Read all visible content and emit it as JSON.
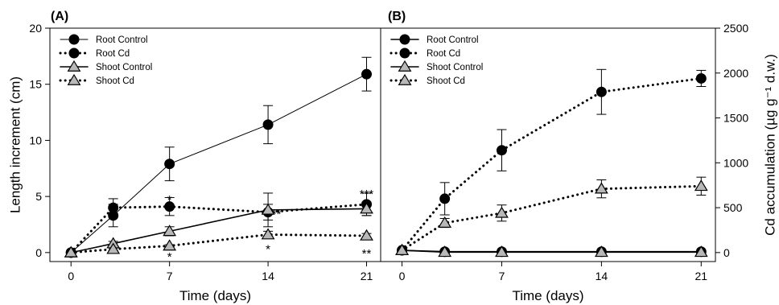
{
  "chart_data": [
    {
      "type": "line",
      "panel_label": "(A)",
      "xlabel": "Time (days)",
      "ylabel": "Length increment (cm)",
      "xlim": [
        -1.5,
        22
      ],
      "ylim": [
        -0.8,
        20
      ],
      "x_ticks": [
        0,
        7,
        14,
        21
      ],
      "y_ticks": [
        0,
        5,
        10,
        15,
        20
      ],
      "x_tick_labels": [
        "0",
        "7",
        "14",
        "21"
      ],
      "y_tick_labels": [
        "0",
        "5",
        "10",
        "15",
        "20"
      ],
      "legend_position": "top-left",
      "series": [
        {
          "name": "Root Control",
          "marker": "circle",
          "line": "solid-thin",
          "x": [
            0,
            3,
            7,
            14,
            21
          ],
          "y": [
            0.0,
            3.3,
            7.9,
            11.4,
            15.9
          ],
          "err": [
            0.1,
            1.0,
            1.5,
            1.7,
            1.5
          ]
        },
        {
          "name": "Root Cd",
          "marker": "circle",
          "line": "dotted",
          "x": [
            0,
            3,
            7,
            14,
            21
          ],
          "y": [
            0.0,
            4.0,
            4.1,
            3.6,
            4.3
          ],
          "err": [
            0.1,
            0.8,
            0.8,
            0.7,
            1.0
          ]
        },
        {
          "name": "Shoot Control",
          "marker": "triangle",
          "line": "solid",
          "x": [
            0,
            3,
            7,
            14,
            21
          ],
          "y": [
            0.0,
            0.8,
            1.9,
            3.8,
            3.9
          ],
          "err": [
            0.05,
            0.2,
            0.4,
            1.5,
            0.6
          ]
        },
        {
          "name": "Shoot Cd",
          "marker": "triangle",
          "line": "dotted",
          "x": [
            0,
            3,
            7,
            14,
            21
          ],
          "y": [
            0.0,
            0.3,
            0.6,
            1.6,
            1.5
          ],
          "err": [
            0.05,
            0.1,
            0.1,
            0.3,
            0.2
          ]
        }
      ],
      "annotations": [
        {
          "text": "*",
          "x": 7,
          "y": 4.8
        },
        {
          "text": "*",
          "x": 7,
          "y": -0.3
        },
        {
          "text": "**",
          "x": 14.6,
          "y": 3.5
        },
        {
          "text": "*",
          "x": 14,
          "y": 0.4
        },
        {
          "text": "***",
          "x": 21,
          "y": 5.3
        },
        {
          "text": "**",
          "x": 21,
          "y": 0.0
        }
      ]
    },
    {
      "type": "line",
      "panel_label": "(B)",
      "xlabel": "Time (days)",
      "ylabel": "Cd accumulation (µg g⁻¹ d.w.)",
      "xlim": [
        -1.5,
        22
      ],
      "ylim": [
        -100,
        2500
      ],
      "x_ticks": [
        0,
        7,
        14,
        21
      ],
      "y_ticks": [
        0,
        500,
        1000,
        1500,
        2000,
        2500
      ],
      "x_tick_labels": [
        "0",
        "7",
        "14",
        "21"
      ],
      "y_tick_labels": [
        "0",
        "500",
        "1000",
        "1500",
        "2000",
        "2500"
      ],
      "legend_position": "top-left",
      "series": [
        {
          "name": "Root Control",
          "marker": "circle",
          "line": "solid",
          "x": [
            0,
            3,
            7,
            14,
            21
          ],
          "y": [
            25,
            10,
            10,
            10,
            10
          ],
          "err": [
            10,
            5,
            5,
            5,
            5
          ]
        },
        {
          "name": "Root Cd",
          "marker": "circle",
          "line": "dotted",
          "x": [
            0,
            3,
            7,
            14,
            21
          ],
          "y": [
            25,
            600,
            1140,
            1790,
            1940
          ],
          "err": [
            10,
            180,
            230,
            250,
            90
          ]
        },
        {
          "name": "Shoot Control",
          "marker": "triangle",
          "line": "solid",
          "x": [
            0,
            3,
            7,
            14,
            21
          ],
          "y": [
            25,
            5,
            5,
            5,
            5
          ],
          "err": [
            10,
            5,
            5,
            5,
            5
          ]
        },
        {
          "name": "Shoot Cd",
          "marker": "triangle",
          "line": "dotted",
          "x": [
            0,
            3,
            7,
            14,
            21
          ],
          "y": [
            25,
            330,
            440,
            710,
            740
          ],
          "err": [
            10,
            50,
            90,
            100,
            100
          ]
        }
      ]
    }
  ]
}
